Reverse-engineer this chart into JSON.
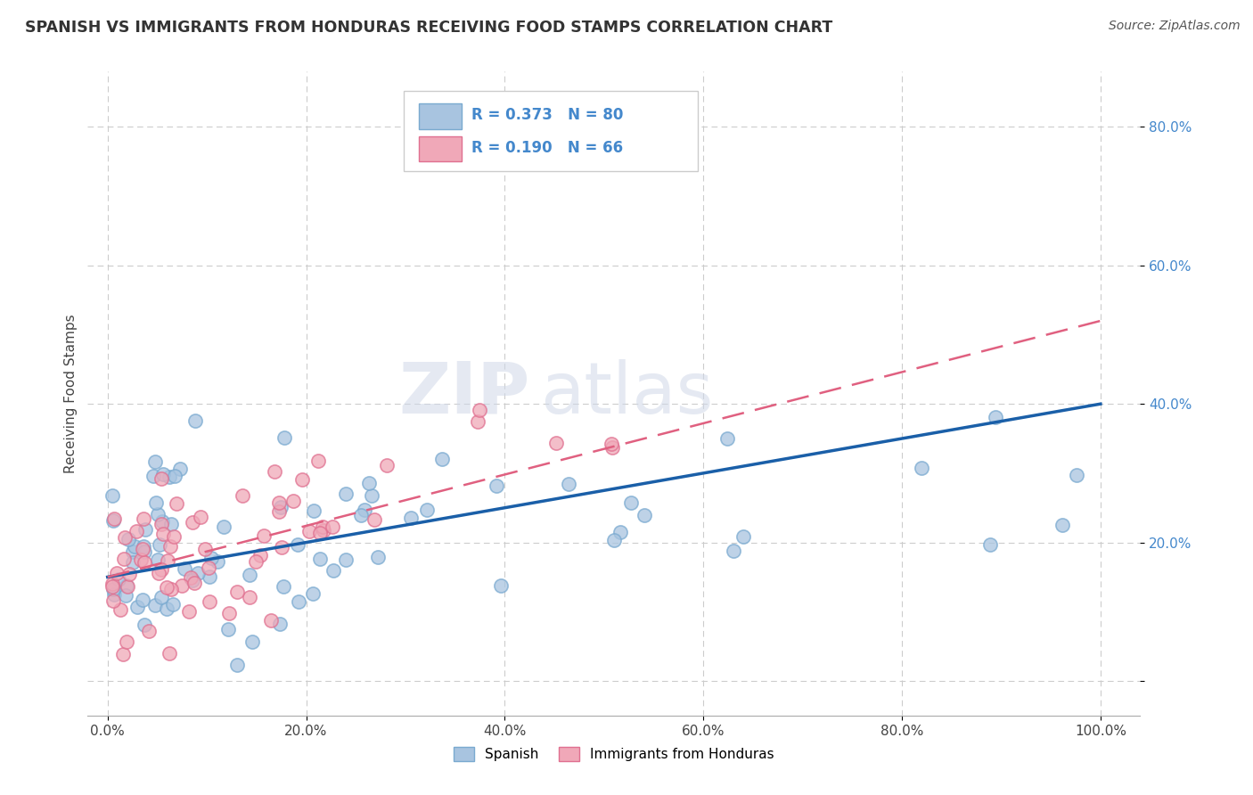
{
  "title": "SPANISH VS IMMIGRANTS FROM HONDURAS RECEIVING FOOD STAMPS CORRELATION CHART",
  "source": "Source: ZipAtlas.com",
  "ylabel": "Receiving Food Stamps",
  "watermark_zip": "ZIP",
  "watermark_atlas": "atlas",
  "series1_color": "#a8c4e0",
  "series1_edge_color": "#7aaad0",
  "series2_color": "#f0a8b8",
  "series2_edge_color": "#e07090",
  "series1_line_color": "#1a5fa8",
  "series2_line_color": "#e06080",
  "legend_label1": "Spanish",
  "legend_label2": "Immigrants from Honduras",
  "r1": 0.373,
  "n1": 80,
  "r2": 0.19,
  "n2": 66,
  "blue_line_x0": 0,
  "blue_line_y0": 15.0,
  "blue_line_x1": 100,
  "blue_line_y1": 40.0,
  "pink_line_x0": 0,
  "pink_line_y0": 15.0,
  "pink_line_x1": 100,
  "pink_line_y1": 52.0,
  "xlim": [
    -2,
    104
  ],
  "ylim": [
    -5,
    88
  ],
  "ytick_color": "#4488cc"
}
